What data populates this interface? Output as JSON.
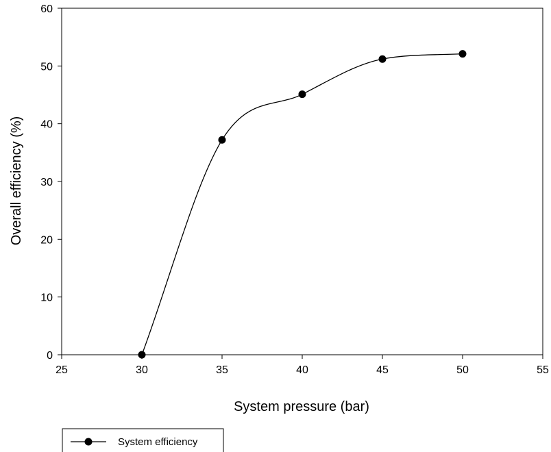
{
  "chart_data": {
    "type": "line",
    "title": "",
    "xlabel": "System pressure (bar)",
    "ylabel": "Overall efficiency (%)",
    "xlim": [
      25,
      55
    ],
    "ylim": [
      0,
      60
    ],
    "xticks": [
      25,
      30,
      35,
      40,
      45,
      50,
      55
    ],
    "yticks": [
      0,
      10,
      20,
      30,
      40,
      50,
      60
    ],
    "grid": false,
    "legend_position": "bottom-left",
    "series": [
      {
        "name": "System efficiency",
        "color": "#000000",
        "marker": "filled-circle",
        "smooth": true,
        "x": [
          30,
          35,
          40,
          45,
          50
        ],
        "y": [
          0,
          37.2,
          45.1,
          51.2,
          52.1
        ]
      }
    ]
  }
}
